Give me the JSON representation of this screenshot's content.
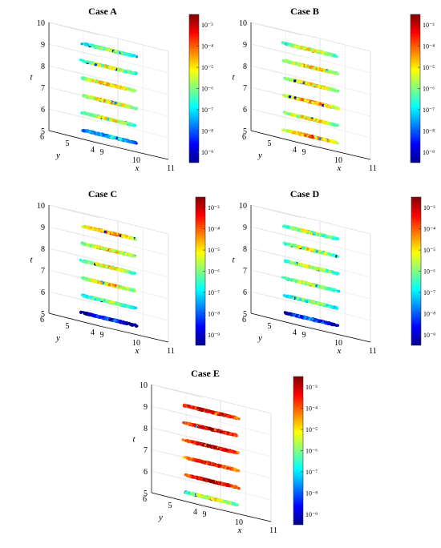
{
  "figure": {
    "colormap": "jet",
    "colors": {
      "low": "#00008f",
      "mid": "#80ff80",
      "high": "#7f0000"
    }
  },
  "chart_data": [
    {
      "type": "scatter3d",
      "title": "Case A",
      "xlabel": "x",
      "ylabel": "y",
      "zlabel": "t",
      "xlim": [
        9,
        11
      ],
      "ylim": [
        4,
        6
      ],
      "zlim": [
        5,
        10
      ],
      "xticks": [
        "9",
        "10",
        "11"
      ],
      "yticks": [
        "4",
        "5",
        "6"
      ],
      "zticks": [
        "5",
        "6",
        "7",
        "8",
        "9",
        "10"
      ],
      "slices_t": [
        5.4,
        6.2,
        7.0,
        7.8,
        8.6,
        9.4
      ],
      "slice_mean_exponent": [
        -7.0,
        -5.5,
        -5.0,
        -5.0,
        -5.5,
        -6.0
      ],
      "colorbar": {
        "ticks": [
          "10⁻⁹",
          "10⁻⁸",
          "10⁻⁷",
          "10⁻⁶",
          "10⁻⁵",
          "10⁻⁴",
          "10⁻³"
        ],
        "range_exp": [
          -9.5,
          -2.5
        ]
      }
    },
    {
      "type": "scatter3d",
      "title": "Case B",
      "xlabel": "x",
      "ylabel": "y",
      "zlabel": "t",
      "xlim": [
        9,
        11
      ],
      "ylim": [
        4,
        6
      ],
      "zlim": [
        5,
        10
      ],
      "xticks": [
        "9",
        "10",
        "11"
      ],
      "yticks": [
        "4",
        "5",
        "6"
      ],
      "zticks": [
        "5",
        "6",
        "7",
        "8",
        "9",
        "10"
      ],
      "slices_t": [
        5.4,
        6.2,
        7.0,
        7.8,
        8.6,
        9.4
      ],
      "slice_mean_exponent": [
        -4.5,
        -5.0,
        -4.5,
        -5.0,
        -5.0,
        -5.5
      ],
      "colorbar": {
        "ticks": [
          "10⁻⁹",
          "10⁻⁸",
          "10⁻⁷",
          "10⁻⁶",
          "10⁻⁵",
          "10⁻⁴",
          "10⁻³"
        ],
        "range_exp": [
          -9.5,
          -2.5
        ]
      }
    },
    {
      "type": "scatter3d",
      "title": "Case C",
      "xlabel": "x",
      "ylabel": "y",
      "zlabel": "t",
      "xlim": [
        9,
        11
      ],
      "ylim": [
        4,
        6
      ],
      "zlim": [
        5,
        10
      ],
      "xticks": [
        "9",
        "10",
        "11"
      ],
      "yticks": [
        "4",
        "5",
        "6"
      ],
      "zticks": [
        "5",
        "6",
        "7",
        "8",
        "9",
        "10"
      ],
      "slices_t": [
        5.4,
        6.2,
        7.0,
        7.8,
        8.6,
        9.4
      ],
      "slice_mean_exponent": [
        -8.5,
        -6.0,
        -5.0,
        -5.5,
        -5.0,
        -4.5
      ],
      "colorbar": {
        "ticks": [
          "10⁻⁹",
          "10⁻⁸",
          "10⁻⁷",
          "10⁻⁶",
          "10⁻⁵",
          "10⁻⁴",
          "10⁻³"
        ],
        "range_exp": [
          -9.5,
          -2.5
        ]
      }
    },
    {
      "type": "scatter3d",
      "title": "Case D",
      "xlabel": "x",
      "ylabel": "y",
      "zlabel": "t",
      "xlim": [
        9,
        11
      ],
      "ylim": [
        4,
        6
      ],
      "zlim": [
        5,
        10
      ],
      "xticks": [
        "9",
        "10",
        "11"
      ],
      "yticks": [
        "4",
        "5",
        "6"
      ],
      "zticks": [
        "5",
        "6",
        "7",
        "8",
        "9",
        "10"
      ],
      "slices_t": [
        5.4,
        6.2,
        7.0,
        7.8,
        8.6,
        9.4
      ],
      "slice_mean_exponent": [
        -8.0,
        -6.0,
        -5.5,
        -5.5,
        -5.5,
        -5.5
      ],
      "colorbar": {
        "ticks": [
          "10⁻⁹",
          "10⁻⁸",
          "10⁻⁷",
          "10⁻⁶",
          "10⁻⁵",
          "10⁻⁴",
          "10⁻³"
        ],
        "range_exp": [
          -9.5,
          -2.5
        ]
      }
    },
    {
      "type": "scatter3d",
      "title": "Case E",
      "xlabel": "x",
      "ylabel": "y",
      "zlabel": "t",
      "xlim": [
        9,
        11
      ],
      "ylim": [
        4,
        6
      ],
      "zlim": [
        5,
        10
      ],
      "xticks": [
        "9",
        "10",
        "11"
      ],
      "yticks": [
        "4",
        "5",
        "6"
      ],
      "zticks": [
        "5",
        "6",
        "7",
        "8",
        "9",
        "10"
      ],
      "slices_t": [
        5.4,
        6.2,
        7.0,
        7.8,
        8.6,
        9.4
      ],
      "slice_mean_exponent": [
        -5.5,
        -3.0,
        -3.5,
        -3.0,
        -3.0,
        -3.0
      ],
      "colorbar": {
        "ticks": [
          "10⁻⁹",
          "10⁻⁸",
          "10⁻⁷",
          "10⁻⁶",
          "10⁻⁵",
          "10⁻⁴",
          "10⁻³"
        ],
        "range_exp": [
          -9.5,
          -2.5
        ]
      }
    }
  ]
}
